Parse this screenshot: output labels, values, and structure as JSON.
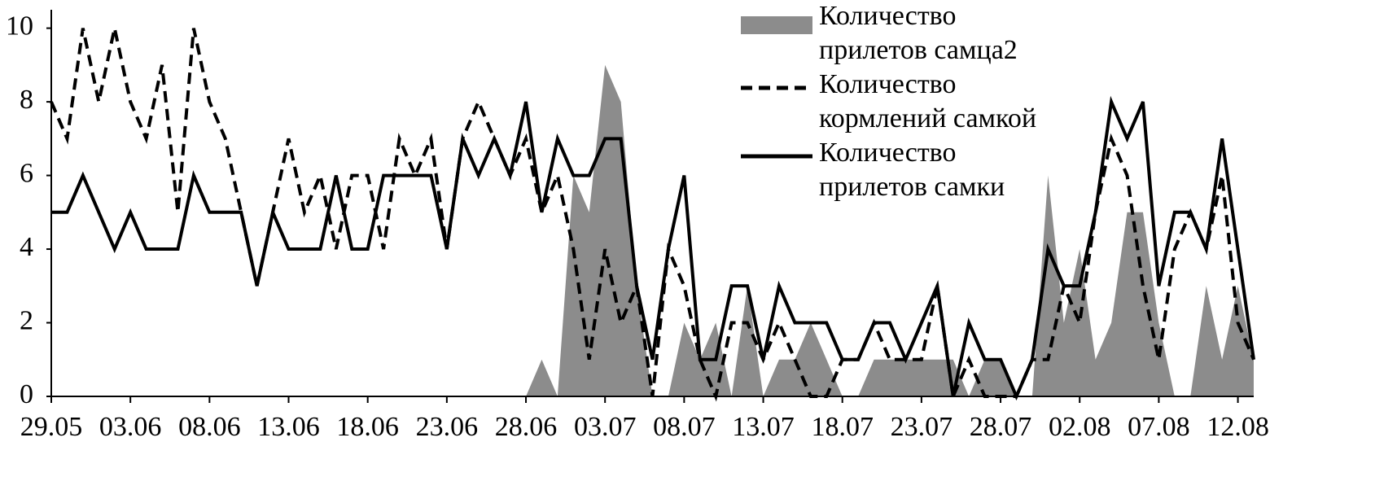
{
  "chart_data": {
    "type": "line",
    "categories": [
      "29.05",
      null,
      null,
      null,
      null,
      "03.06",
      null,
      null,
      null,
      null,
      "08.06",
      null,
      null,
      null,
      null,
      "13.06",
      null,
      null,
      null,
      null,
      "18.06",
      null,
      null,
      null,
      null,
      "23.06",
      null,
      null,
      null,
      null,
      "28.06",
      null,
      null,
      null,
      null,
      "03.07",
      null,
      null,
      null,
      null,
      "08.07",
      null,
      null,
      null,
      null,
      "13.07",
      null,
      null,
      null,
      null,
      "18.07",
      null,
      null,
      null,
      null,
      "23.07",
      null,
      null,
      null,
      null,
      "28.07",
      null,
      null,
      null,
      null,
      "02.08",
      null,
      null,
      null,
      null,
      "07.08",
      null,
      null,
      null,
      null,
      "12.08",
      null
    ],
    "series": [
      {
        "name": "Количество прилетов самца2",
        "color": "#8c8c8c",
        "kind": "area",
        "values": [
          0,
          0,
          0,
          0,
          0,
          0,
          0,
          0,
          0,
          0,
          0,
          0,
          0,
          0,
          0,
          0,
          0,
          0,
          0,
          0,
          0,
          0,
          0,
          0,
          0,
          0,
          0,
          0,
          0,
          0,
          0,
          1,
          0,
          6,
          5,
          9,
          8,
          3,
          0,
          0,
          2,
          1,
          2,
          0,
          3,
          0,
          1,
          1,
          2,
          1,
          0,
          0,
          1,
          1,
          1,
          1,
          1,
          1,
          0,
          1,
          1,
          0,
          0,
          6,
          2,
          4,
          1,
          2,
          5,
          5,
          2,
          0,
          0,
          3,
          1,
          3,
          1
        ]
      },
      {
        "name": "Количество кормлений самкой",
        "color": "#000000",
        "kind": "dashed",
        "values": [
          8,
          7,
          10,
          8,
          10,
          8,
          7,
          9,
          5,
          10,
          8,
          7,
          5,
          3,
          5,
          7,
          5,
          6,
          4,
          6,
          6,
          4,
          7,
          6,
          7,
          4,
          7,
          8,
          7,
          6,
          7,
          5,
          6,
          4,
          1,
          4,
          2,
          3,
          0,
          4,
          3,
          1,
          0,
          2,
          2,
          1,
          2,
          1,
          0,
          0,
          1,
          1,
          2,
          1,
          1,
          1,
          3,
          0,
          1,
          0,
          0,
          0,
          1,
          1,
          3,
          2,
          5,
          7,
          6,
          3,
          1,
          4,
          5,
          4,
          6,
          2,
          1
        ]
      },
      {
        "name": "Количество прилетов самки",
        "color": "#000000",
        "kind": "solid",
        "values": [
          5,
          5,
          6,
          5,
          4,
          5,
          4,
          4,
          4,
          6,
          5,
          5,
          5,
          3,
          5,
          4,
          4,
          4,
          6,
          4,
          4,
          6,
          6,
          6,
          6,
          4,
          7,
          6,
          7,
          6,
          8,
          5,
          7,
          6,
          6,
          7,
          7,
          3,
          1,
          4,
          6,
          1,
          1,
          3,
          3,
          1,
          3,
          2,
          2,
          2,
          1,
          1,
          2,
          2,
          1,
          2,
          3,
          0,
          2,
          1,
          1,
          0,
          1,
          4,
          3,
          3,
          5,
          8,
          7,
          8,
          3,
          5,
          5,
          4,
          7,
          4,
          1
        ]
      }
    ],
    "ylim": [
      0,
      10.5
    ],
    "yticks": [
      0,
      2,
      4,
      6,
      8,
      10
    ],
    "grid": false,
    "legend": "upper right"
  }
}
